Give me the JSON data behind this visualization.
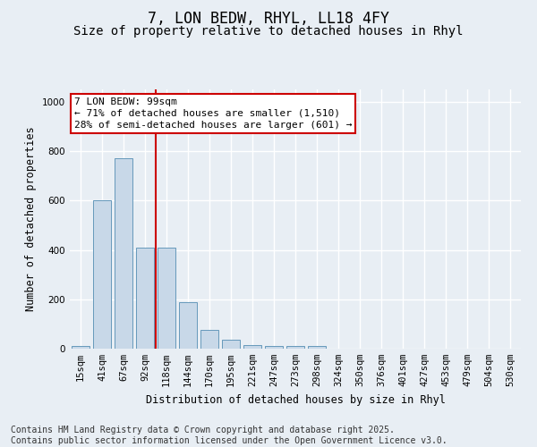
{
  "title_line1": "7, LON BEDW, RHYL, LL18 4FY",
  "title_line2": "Size of property relative to detached houses in Rhyl",
  "xlabel": "Distribution of detached houses by size in Rhyl",
  "ylabel": "Number of detached properties",
  "categories": [
    "15sqm",
    "41sqm",
    "67sqm",
    "92sqm",
    "118sqm",
    "144sqm",
    "170sqm",
    "195sqm",
    "221sqm",
    "247sqm",
    "273sqm",
    "298sqm",
    "324sqm",
    "350sqm",
    "376sqm",
    "401sqm",
    "427sqm",
    "453sqm",
    "479sqm",
    "504sqm",
    "530sqm"
  ],
  "values": [
    12,
    600,
    770,
    410,
    410,
    190,
    75,
    35,
    15,
    12,
    10,
    12,
    0,
    0,
    0,
    0,
    0,
    0,
    0,
    0,
    0
  ],
  "bar_color": "#c8d8e8",
  "bar_edge_color": "#6699bb",
  "highlight_line_color": "#cc0000",
  "annotation_line1": "7 LON BEDW: 99sqm",
  "annotation_line2": "← 71% of detached houses are smaller (1,510)",
  "annotation_line3": "28% of semi-detached houses are larger (601) →",
  "annotation_box_color": "#ffffff",
  "annotation_box_edge": "#cc0000",
  "ylim": [
    0,
    1050
  ],
  "yticks": [
    0,
    200,
    400,
    600,
    800,
    1000
  ],
  "background_color": "#e8eef4",
  "grid_color": "#ffffff",
  "footer_line1": "Contains HM Land Registry data © Crown copyright and database right 2025.",
  "footer_line2": "Contains public sector information licensed under the Open Government Licence v3.0.",
  "title_fontsize": 12,
  "subtitle_fontsize": 10,
  "axis_label_fontsize": 8.5,
  "tick_fontsize": 7.5,
  "annotation_fontsize": 8,
  "footer_fontsize": 7
}
